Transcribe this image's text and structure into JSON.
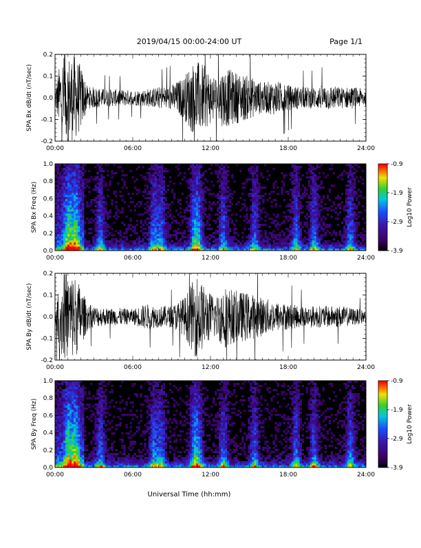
{
  "header": {
    "date_range": "2019/04/15  00:00-24:00 UT",
    "page_label": "Page 1/1"
  },
  "footer": {
    "x_axis_title": "Universal Time (hh:mm)"
  },
  "colors": {
    "trace": "#000000",
    "background": "#ffffff",
    "spectrogram_floor": "#000000"
  },
  "chart_data": [
    {
      "type": "line",
      "panel": "waveform-bx",
      "ylabel": "SPA Bx dB/dt (nT/sec)",
      "ylim": [
        -0.2,
        0.2
      ],
      "yticks": [
        "0.2",
        "0.1",
        "0.0",
        "-0.1",
        "-0.2"
      ],
      "xticks": [
        "00:00",
        "06:00",
        "12:00",
        "18:00",
        "24:00"
      ],
      "xlim_hours": [
        0,
        24
      ],
      "envelope": {
        "x_hours": [
          0,
          0.5,
          1,
          1.5,
          2,
          2.5,
          3,
          4,
          5,
          6,
          7,
          8,
          9,
          10,
          10.5,
          11,
          11.5,
          12,
          12.5,
          13,
          13.5,
          14,
          15,
          16,
          17,
          18,
          19,
          20,
          21,
          22,
          23,
          24
        ],
        "amplitude": [
          0.04,
          0.2,
          0.2,
          0.2,
          0.15,
          0.05,
          0.05,
          0.04,
          0.04,
          0.035,
          0.04,
          0.05,
          0.06,
          0.1,
          0.16,
          0.17,
          0.15,
          0.12,
          0.1,
          0.14,
          0.13,
          0.12,
          0.1,
          0.07,
          0.08,
          0.06,
          0.05,
          0.05,
          0.06,
          0.05,
          0.05,
          0.04
        ]
      }
    },
    {
      "type": "heatmap",
      "panel": "spectrogram-bx",
      "ylabel": "SPA Bx Freq (Hz)",
      "ylim": [
        0.0,
        1.0
      ],
      "yticks": [
        "1.0",
        "0.8",
        "0.6",
        "0.4",
        "0.2",
        "0.0"
      ],
      "xticks": [
        "00:00",
        "06:00",
        "12:00",
        "18:00",
        "24:00"
      ],
      "xlim_hours": [
        0,
        24
      ],
      "colorbar": {
        "label": "Log10 Power",
        "ticks": [
          "-0.9",
          "-1.9",
          "-2.9",
          "-3.9"
        ],
        "range": [
          -3.9,
          -0.9
        ]
      }
    },
    {
      "type": "line",
      "panel": "waveform-by",
      "ylabel": "SPA By dB/dt (nT/sec)",
      "ylim": [
        -0.2,
        0.2
      ],
      "yticks": [
        "0.2",
        "0.1",
        "0.0",
        "-0.1",
        "-0.2"
      ],
      "xticks": [
        "00:00",
        "06:00",
        "12:00",
        "18:00",
        "24:00"
      ],
      "xlim_hours": [
        0,
        24
      ],
      "envelope": {
        "x_hours": [
          0,
          0.5,
          1,
          1.5,
          2,
          2.5,
          3,
          4,
          5,
          6,
          7,
          8,
          9,
          10,
          10.5,
          11,
          11.5,
          12,
          12.5,
          13,
          13.5,
          14,
          15,
          16,
          17,
          18,
          19,
          20,
          21,
          22,
          23,
          24
        ],
        "amplitude": [
          0.05,
          0.2,
          0.2,
          0.2,
          0.14,
          0.06,
          0.05,
          0.04,
          0.04,
          0.035,
          0.06,
          0.05,
          0.05,
          0.09,
          0.15,
          0.2,
          0.14,
          0.11,
          0.1,
          0.15,
          0.13,
          0.12,
          0.11,
          0.09,
          0.07,
          0.06,
          0.05,
          0.05,
          0.05,
          0.05,
          0.04,
          0.03
        ]
      }
    },
    {
      "type": "heatmap",
      "panel": "spectrogram-by",
      "ylabel": "SPA By Freq (Hz)",
      "ylim": [
        0.0,
        1.0
      ],
      "yticks": [
        "1.0",
        "0.8",
        "0.6",
        "0.4",
        "0.2",
        "0.0"
      ],
      "xticks": [
        "00:00",
        "06:00",
        "12:00",
        "18:00",
        "24:00"
      ],
      "xlim_hours": [
        0,
        24
      ],
      "colorbar": {
        "label": "Log10 Power",
        "ticks": [
          "-0.9",
          "-1.9",
          "-2.9",
          "-3.9"
        ],
        "range": [
          -3.9,
          -0.9
        ]
      }
    }
  ]
}
